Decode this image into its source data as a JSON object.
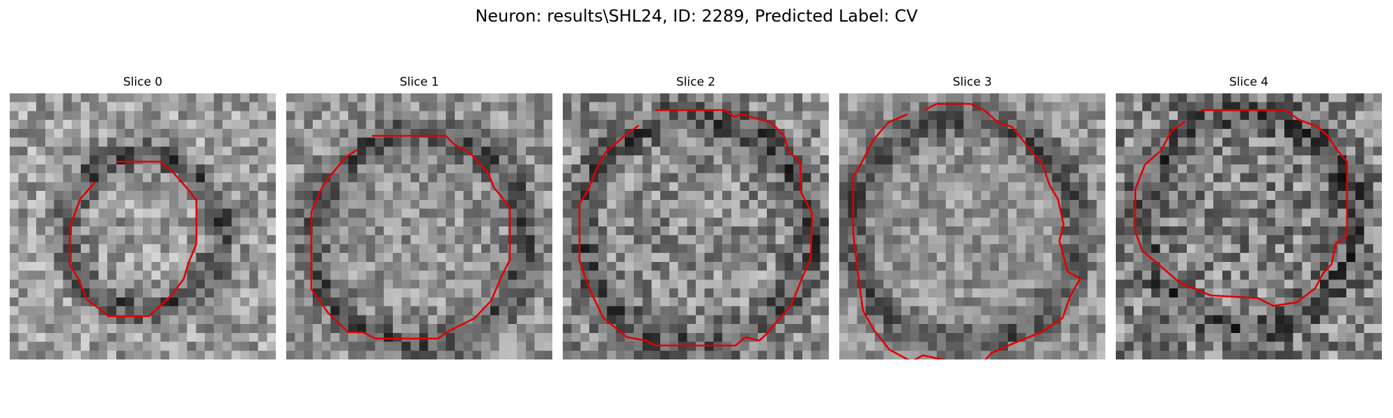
{
  "figure": {
    "title": "Neuron: results\\SHL24, ID: 2289, Predicted Label: CV",
    "colormap": "grayscale",
    "contour_color": "#e00000"
  },
  "slices": [
    {
      "title": "Slice 0"
    },
    {
      "title": "Slice 1"
    },
    {
      "title": "Slice 2"
    },
    {
      "title": "Slice 3"
    },
    {
      "title": "Slice 4"
    }
  ]
}
